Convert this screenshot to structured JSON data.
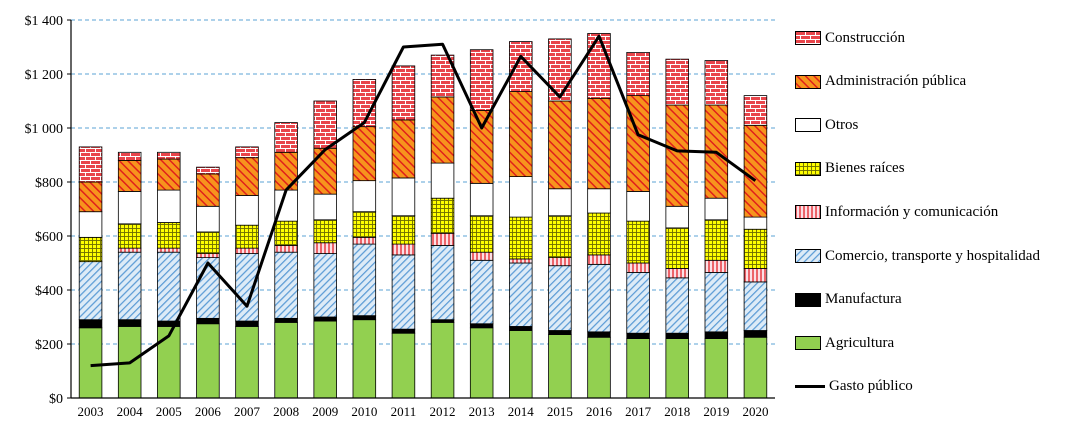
{
  "chart_data": {
    "type": "bar",
    "stacked": true,
    "categories": [
      "2003",
      "2004",
      "2005",
      "2006",
      "2007",
      "2008",
      "2009",
      "2010",
      "2011",
      "2012",
      "2013",
      "2014",
      "2015",
      "2016",
      "2017",
      "2018",
      "2019",
      "2020"
    ],
    "ylim": [
      0,
      1400
    ],
    "yticks": [
      0,
      200,
      400,
      600,
      800,
      1000,
      1200,
      1400
    ],
    "ytick_labels": [
      "$0",
      "$200",
      "$400",
      "$600",
      "$800",
      "$1 000",
      "$1 200",
      "$1 400"
    ],
    "grid": true,
    "legend_position": "right",
    "series": [
      {
        "name": "Agricultura",
        "color": "#92D050",
        "pattern": "solid",
        "values": [
          260,
          265,
          265,
          275,
          265,
          280,
          285,
          290,
          240,
          280,
          260,
          250,
          235,
          225,
          220,
          220,
          220,
          225
        ]
      },
      {
        "name": "Manufactura",
        "color": "#000000",
        "pattern": "solid",
        "values": [
          30,
          25,
          20,
          20,
          20,
          15,
          15,
          15,
          15,
          10,
          15,
          15,
          15,
          20,
          20,
          20,
          25,
          25
        ]
      },
      {
        "name": "Comercio, transporte y hospitalidad",
        "color": "#9DC3E6",
        "pattern": "diagonal-blue",
        "values": [
          215,
          250,
          255,
          225,
          250,
          245,
          235,
          265,
          275,
          275,
          235,
          235,
          240,
          250,
          225,
          205,
          220,
          180
        ]
      },
      {
        "name": "Información y comunicación",
        "color": "#F4B6C2",
        "pattern": "vertical-red",
        "values": [
          0,
          15,
          15,
          15,
          20,
          25,
          40,
          25,
          40,
          45,
          30,
          15,
          30,
          35,
          35,
          35,
          45,
          50
        ]
      },
      {
        "name": "Bienes raíces",
        "color": "#FFFF00",
        "pattern": "grid-yellow",
        "values": [
          90,
          90,
          95,
          80,
          85,
          90,
          85,
          95,
          105,
          130,
          135,
          155,
          155,
          155,
          155,
          150,
          150,
          145
        ]
      },
      {
        "name": "Otros",
        "color": "#FFFFFF",
        "pattern": "solid",
        "values": [
          95,
          120,
          120,
          95,
          110,
          115,
          95,
          115,
          140,
          130,
          120,
          150,
          100,
          90,
          110,
          80,
          80,
          45
        ]
      },
      {
        "name": "Administración pública",
        "color": "#F27C1E",
        "pattern": "diagonal-orange",
        "values": [
          110,
          115,
          115,
          120,
          140,
          140,
          170,
          200,
          215,
          245,
          270,
          315,
          325,
          335,
          355,
          375,
          345,
          340
        ]
      },
      {
        "name": "Construcción",
        "color": "#E8454B",
        "pattern": "brick",
        "values": [
          130,
          30,
          25,
          25,
          40,
          110,
          175,
          175,
          200,
          155,
          225,
          185,
          230,
          240,
          160,
          170,
          165,
          110
        ]
      }
    ],
    "line_series": {
      "name": "Gasto público",
      "color": "#000000",
      "values": [
        120,
        130,
        230,
        500,
        340,
        770,
        920,
        1020,
        1300,
        1310,
        1000,
        1265,
        1115,
        1340,
        975,
        915,
        910,
        805
      ]
    }
  }
}
